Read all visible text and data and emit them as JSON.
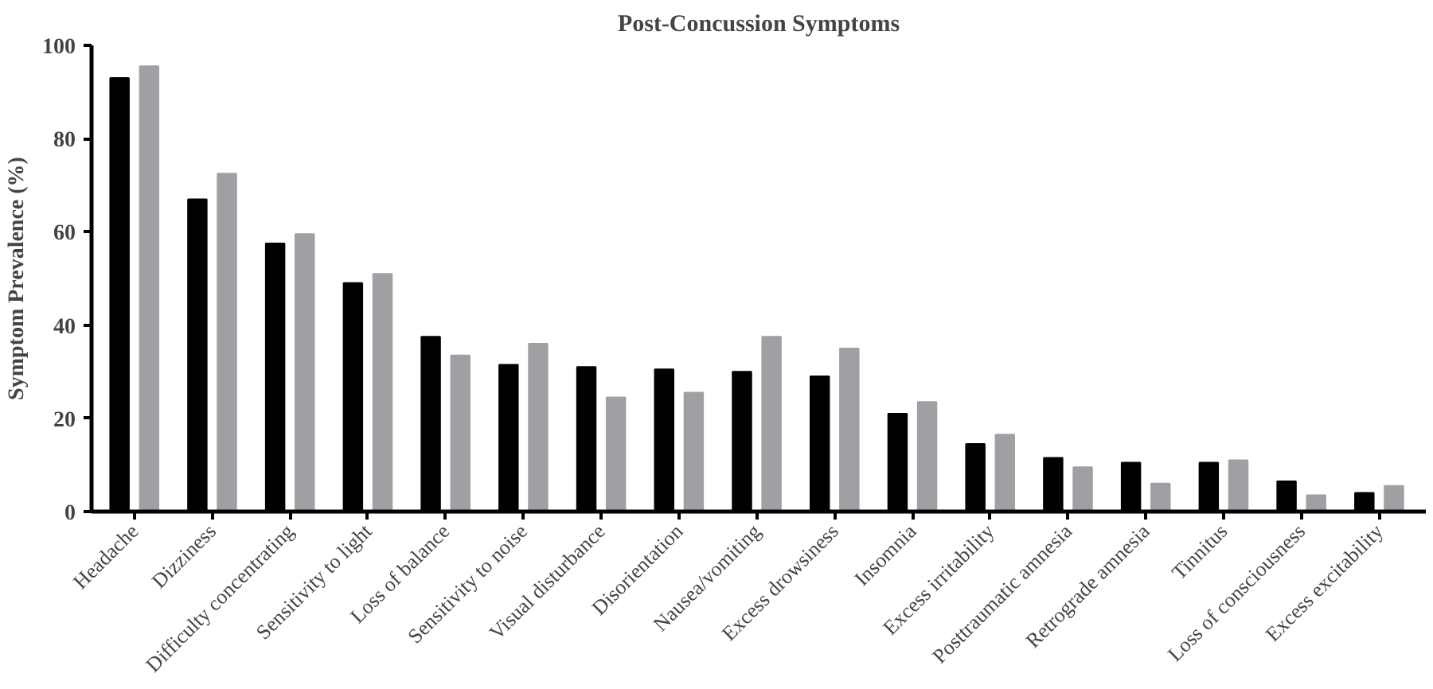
{
  "chart_data": {
    "type": "bar",
    "title": "Post-Concussion Symptoms",
    "ylabel": "Symptom Prevalence (%)",
    "categories": [
      "Headache",
      "Dizziness",
      "Difficulty concentrating",
      "Sensitivity to light",
      "Loss of balance",
      "Sensitivity to noise",
      "Visual disturbance",
      "Disorientation",
      "Nausea/vomiting",
      "Excess drowsiness",
      "Insomnia",
      "Excess irritability",
      "Posttraumatic amnesia",
      "Retrograde amnesia",
      "Tinnitus",
      "Loss of consciousness",
      "Excess excitability"
    ],
    "series": [
      {
        "color": "#000000",
        "values": [
          93,
          67,
          57.5,
          49,
          37.5,
          31.5,
          31,
          30.5,
          30,
          29,
          21,
          14.5,
          11.5,
          10.5,
          10.5,
          6.5,
          4
        ]
      },
      {
        "color": "#a0a0a4",
        "values": [
          95.5,
          72.5,
          59.5,
          51,
          33.5,
          36,
          24.5,
          25.5,
          37.5,
          35,
          23.5,
          16.5,
          9.5,
          6,
          11,
          3.5,
          5.5
        ]
      }
    ],
    "ylim": [
      0,
      100
    ],
    "yticks": [
      0,
      20,
      40,
      60,
      80,
      100
    ],
    "grid": false
  }
}
